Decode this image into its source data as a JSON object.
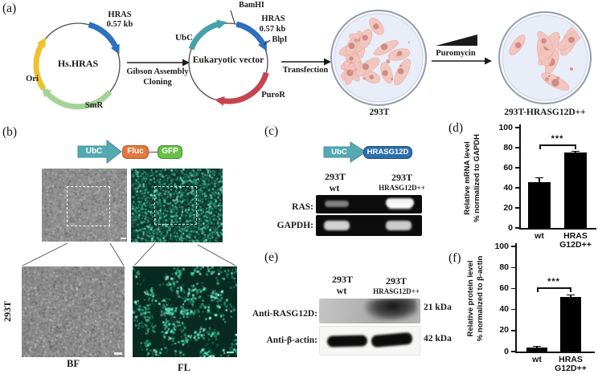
{
  "panel_labels": {
    "a": "(a)",
    "b": "(b)",
    "c": "(c)",
    "d": "(d)",
    "e": "(e)",
    "f": "(f)"
  },
  "colors": {
    "teal": "#52a7af",
    "blue": "#2e6fc0",
    "yellow": "#f0c12f",
    "light_green": "#a6d395",
    "red": "#c64450",
    "orange": "#e0793f",
    "green": "#6abf4b",
    "gene_blue": "#2c6fad",
    "cell_pink": "#f2c5bd",
    "nucleus_pink": "#cf8b85",
    "fluor_cyan": "#32e0ad",
    "dish_fill": "#e9edf8"
  },
  "panel_a": {
    "plasmid1": {
      "name": "Hs.HRAS",
      "hras": "HRAS",
      "hras_size": "0.57 kb",
      "ori": "Ori",
      "smr": "SmR"
    },
    "gibson_line1": "Gibson Assembly",
    "gibson_line2": "Cloning",
    "plasmid2": {
      "name": "Eukaryotic vector",
      "ubc": "UbC",
      "bamhi": "BamHI",
      "hras": "HRAS",
      "hras_size": "0.57 kb",
      "blpi": "BlpI",
      "puror": "PuroR"
    },
    "transfection": "Transfection",
    "dish1": "293T",
    "puromycin": "Puromycin",
    "dish2": "293T-HRASG12D++"
  },
  "panel_b": {
    "ubc": "UbC",
    "fluc": "Fluc",
    "gfp": "GFP",
    "cell_line": "293T",
    "bf": "BF",
    "fl": "FL"
  },
  "panel_c": {
    "ubc": "UbC",
    "gene": "HRASG12D",
    "lane1_line1": "293T",
    "lane1_line2": "wt",
    "lane2_line1": "293T",
    "lane2_line2": "HRASG12D++",
    "row1": "RAS:",
    "row2": "GAPDH:",
    "bands": {
      "ras": [
        "faint",
        "strong"
      ],
      "gapdh": [
        "present",
        "present"
      ]
    }
  },
  "panel_e": {
    "lane1_line1": "293T",
    "lane1_line2": "wt",
    "lane2_line1": "293T",
    "lane2_line2": "HRASG12D++",
    "row1": "Anti-RASG12D:",
    "row2": "Anti-β-actin:",
    "mw1": "21 kDa",
    "mw2": "42 kDa",
    "bands": {
      "rasg12d": [
        "absent",
        "strong"
      ],
      "actin": [
        "present",
        "present"
      ]
    }
  },
  "chart_data": [
    {
      "id": "mRNA",
      "type": "bar",
      "categories": [
        [
          "wt"
        ],
        [
          "HRAS",
          "G12D++"
        ]
      ],
      "values": [
        46,
        75
      ],
      "errors": [
        4,
        1.5
      ],
      "ylabel_line1": "Relative mRNA level",
      "ylabel_line2": "% normalized to GAPDH",
      "ylim": [
        0,
        100
      ],
      "yticks": [
        0,
        20,
        40,
        60,
        80,
        100
      ],
      "significance": {
        "label": "***",
        "bracket_y": 83
      }
    },
    {
      "id": "protein",
      "type": "bar",
      "categories": [
        [
          "wt"
        ],
        [
          "HRAS",
          "G12D++"
        ]
      ],
      "values": [
        4,
        52
      ],
      "errors": [
        1,
        2
      ],
      "ylabel_line1": "Relative protein level",
      "ylabel_line2": "% normalized to β-actin",
      "ylim": [
        0,
        100
      ],
      "yticks": [
        0,
        20,
        40,
        60,
        80,
        100
      ],
      "significance": {
        "label": "***",
        "bracket_y": 61
      }
    }
  ]
}
